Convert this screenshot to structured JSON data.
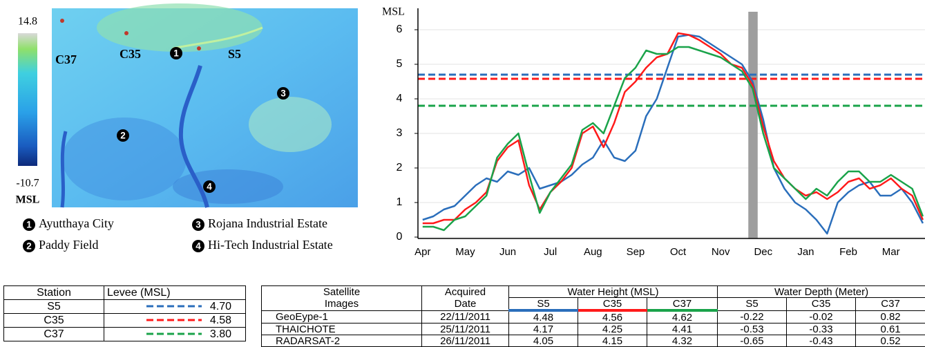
{
  "map": {
    "colorbar": {
      "max": "14.8",
      "min": "-10.7",
      "unit": "MSL"
    },
    "stations": [
      "C37",
      "C35",
      "S5"
    ],
    "markers": [
      {
        "number": "1",
        "label": "Ayutthaya City"
      },
      {
        "number": "2",
        "label": "Paddy Field"
      },
      {
        "number": "3",
        "label": "Rojana Industrial Estate"
      },
      {
        "number": "4",
        "label": "Hi-Tech Industrial Estate"
      }
    ]
  },
  "chart_data": {
    "type": "line",
    "ylabel": "MSL",
    "x": [
      0,
      0.25,
      0.5,
      0.75,
      1,
      1.25,
      1.5,
      1.75,
      2,
      2.25,
      2.5,
      2.75,
      3,
      3.25,
      3.5,
      3.75,
      4,
      4.25,
      4.5,
      4.75,
      5,
      5.25,
      5.5,
      5.75,
      6,
      6.25,
      6.5,
      6.75,
      7,
      7.25,
      7.5,
      7.75,
      8,
      8.25,
      8.5,
      8.75,
      9,
      9.25,
      9.5,
      9.75,
      10,
      10.25,
      10.5,
      10.75,
      11,
      11.25,
      11.5,
      11.75
    ],
    "series": [
      {
        "name": "S5",
        "color": "#2a6ebb",
        "values": [
          0.5,
          0.6,
          0.8,
          0.9,
          1.2,
          1.5,
          1.7,
          1.6,
          1.9,
          1.8,
          2.0,
          1.4,
          1.5,
          1.6,
          1.8,
          2.1,
          2.3,
          2.8,
          2.3,
          2.2,
          2.5,
          3.5,
          4.0,
          4.9,
          5.8,
          5.85,
          5.8,
          5.6,
          5.4,
          5.2,
          5.0,
          4.5,
          3.4,
          2.0,
          1.4,
          1.0,
          0.8,
          0.5,
          0.1,
          1.0,
          1.3,
          1.5,
          1.6,
          1.2,
          1.2,
          1.4,
          1.0,
          0.4
        ]
      },
      {
        "name": "C35",
        "color": "#ff1a1a",
        "values": [
          0.4,
          0.4,
          0.5,
          0.5,
          0.8,
          1.0,
          1.3,
          2.2,
          2.6,
          2.8,
          1.5,
          0.8,
          1.3,
          1.6,
          2.0,
          3.0,
          3.2,
          2.6,
          3.3,
          4.2,
          4.5,
          4.9,
          5.2,
          5.3,
          5.9,
          5.85,
          5.7,
          5.5,
          5.3,
          5.0,
          4.9,
          4.4,
          3.2,
          2.2,
          1.7,
          1.4,
          1.2,
          1.3,
          1.1,
          1.3,
          1.6,
          1.7,
          1.4,
          1.5,
          1.7,
          1.4,
          1.2,
          0.5
        ]
      },
      {
        "name": "C37",
        "color": "#1aa34a",
        "values": [
          0.3,
          0.3,
          0.2,
          0.5,
          0.6,
          0.9,
          1.2,
          2.3,
          2.7,
          3.0,
          1.8,
          0.7,
          1.3,
          1.7,
          2.1,
          3.1,
          3.3,
          3.0,
          3.8,
          4.6,
          4.9,
          5.4,
          5.3,
          5.3,
          5.5,
          5.5,
          5.4,
          5.3,
          5.2,
          5.0,
          4.8,
          4.3,
          3.0,
          2.0,
          1.7,
          1.4,
          1.1,
          1.4,
          1.2,
          1.6,
          1.9,
          1.9,
          1.6,
          1.6,
          1.8,
          1.6,
          1.4,
          0.6
        ]
      }
    ],
    "xlim": [
      -0.11,
      11.8
    ],
    "xticks": [
      {
        "value": 0,
        "label": "Apr"
      },
      {
        "value": 1,
        "label": "May"
      },
      {
        "value": 2,
        "label": "Jun"
      },
      {
        "value": 3,
        "label": "Jul"
      },
      {
        "value": 4,
        "label": "Aug"
      },
      {
        "value": 5,
        "label": "Sep"
      },
      {
        "value": 6,
        "label": "Oct"
      },
      {
        "value": 7,
        "label": "Nov"
      },
      {
        "value": 8,
        "label": "Dec"
      },
      {
        "value": 9,
        "label": "Jan"
      },
      {
        "value": 10,
        "label": "Feb"
      },
      {
        "value": 11,
        "label": "Mar"
      }
    ],
    "ylim": [
      -0.04,
      6.62
    ],
    "yticks": [
      0,
      1,
      2,
      3,
      4,
      5,
      6
    ],
    "grid": true,
    "highlight": {
      "x": [
        7.65,
        7.87
      ],
      "color": "#9e9e9e"
    }
  },
  "levee_table": {
    "header": [
      "Station",
      "Levee (MSL)"
    ],
    "rows": [
      {
        "station": "S5",
        "color": "#2a6ebb",
        "levee": {
          "value": 4.7,
          "label": "4.70"
        }
      },
      {
        "station": "C35",
        "color": "#ff1a1a",
        "levee": {
          "value": 4.58,
          "label": "4.58"
        }
      },
      {
        "station": "C37",
        "color": "#1aa34a",
        "levee": {
          "value": 3.8,
          "label": "3.80"
        }
      }
    ]
  },
  "image_table": {
    "header_top": [
      "Satellite",
      "Acquired",
      "Water Height (MSL)",
      "Water Depth (Meter)"
    ],
    "header_bottom": [
      "Images",
      "Date",
      "S5",
      "C35",
      "C37",
      "S5",
      "C35",
      "C37"
    ],
    "underline_colors": [
      "#2a6ebb",
      "#ff1a1a",
      "#1aa34a"
    ],
    "rows": [
      [
        "GeoEype-1",
        "22/11/2011",
        "4.48",
        "4.56",
        "4.62",
        "-0.22",
        "-0.02",
        "0.82"
      ],
      [
        "THAICHOTE",
        "25/11/2011",
        "4.17",
        "4.25",
        "4.41",
        "-0.53",
        "-0.33",
        "0.61"
      ],
      [
        "RADARSAT-2",
        "26/11/2011",
        "4.05",
        "4.15",
        "4.32",
        "-0.65",
        "-0.43",
        "0.52"
      ]
    ]
  }
}
